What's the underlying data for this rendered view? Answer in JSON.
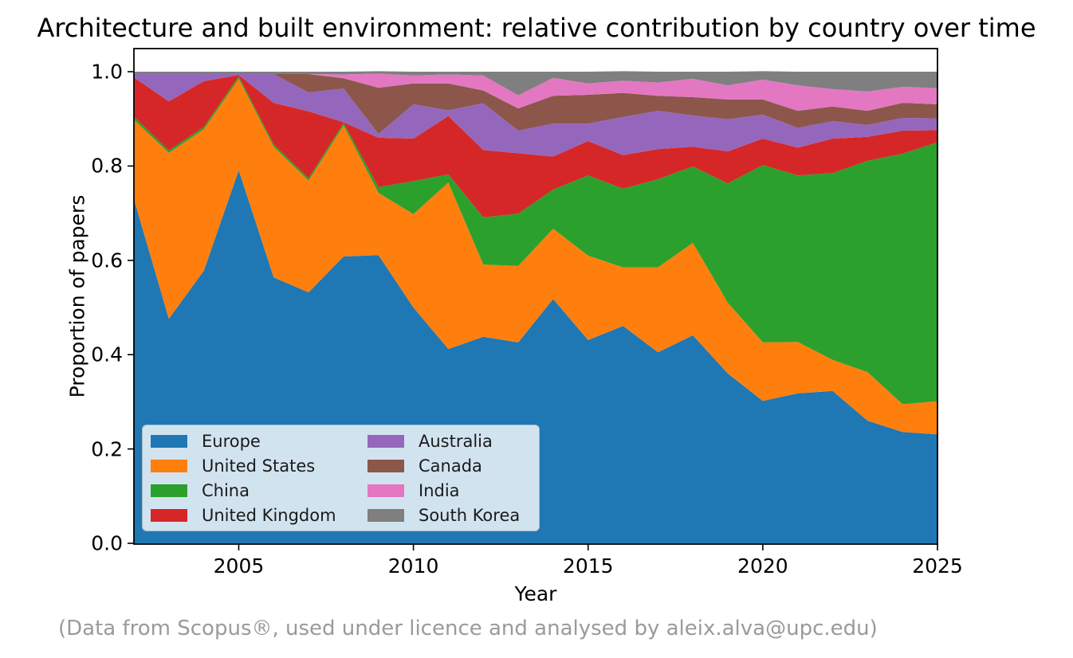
{
  "title": "Architecture and built environment: relative contribution by country over time",
  "footer": "(Data from Scopus®, used under licence and analysed by aleix.alva@upc.edu)",
  "chart_data": {
    "type": "area",
    "stacked": true,
    "normalized": true,
    "title": "Architecture and built environment: relative contribution by country over time",
    "xlabel": "Year",
    "ylabel": "Proportion of papers",
    "x_range": [
      2002,
      2025
    ],
    "ylim": [
      0.0,
      1.05
    ],
    "grid": false,
    "legend_position": "lower-left-inside",
    "legend_columns": 2,
    "x_ticks": [
      {
        "v": 2005,
        "label": "2005"
      },
      {
        "v": 2010,
        "label": "2010"
      },
      {
        "v": 2015,
        "label": "2015"
      },
      {
        "v": 2020,
        "label": "2020"
      },
      {
        "v": 2025,
        "label": "2025"
      }
    ],
    "y_ticks": [
      {
        "v": 0.0,
        "label": "0.0"
      },
      {
        "v": 0.2,
        "label": "0.2"
      },
      {
        "v": 0.4,
        "label": "0.4"
      },
      {
        "v": 0.6,
        "label": "0.6"
      },
      {
        "v": 0.8,
        "label": "0.8"
      },
      {
        "v": 1.0,
        "label": "1.0"
      }
    ],
    "years": [
      2002,
      2003,
      2004,
      2005,
      2006,
      2007,
      2008,
      2009,
      2010,
      2011,
      2012,
      2013,
      2014,
      2015,
      2016,
      2017,
      2018,
      2019,
      2020,
      2021,
      2022,
      2023,
      2024,
      2025
    ],
    "series": [
      {
        "name": "Europe",
        "color": "#1f77b4",
        "values": [
          0.73,
          0.476,
          0.578,
          0.791,
          0.564,
          0.532,
          0.608,
          0.611,
          0.5,
          0.412,
          0.438,
          0.426,
          0.518,
          0.431,
          0.461,
          0.405,
          0.441,
          0.36,
          0.302,
          0.318,
          0.323,
          0.26,
          0.236,
          0.231
        ]
      },
      {
        "name": "United States",
        "color": "#ff7f0e",
        "values": [
          0.168,
          0.352,
          0.3,
          0.194,
          0.277,
          0.237,
          0.278,
          0.132,
          0.198,
          0.353,
          0.153,
          0.162,
          0.149,
          0.179,
          0.124,
          0.18,
          0.196,
          0.15,
          0.124,
          0.109,
          0.066,
          0.103,
          0.059,
          0.07
        ]
      },
      {
        "name": "China",
        "color": "#2ca02c",
        "values": [
          0.007,
          0.005,
          0.005,
          0.005,
          0.005,
          0.005,
          0.005,
          0.012,
          0.07,
          0.017,
          0.1,
          0.111,
          0.083,
          0.17,
          0.167,
          0.187,
          0.162,
          0.253,
          0.376,
          0.353,
          0.396,
          0.448,
          0.531,
          0.549
        ]
      },
      {
        "name": "United Kingdom",
        "color": "#d62728",
        "values": [
          0.083,
          0.104,
          0.097,
          0.003,
          0.088,
          0.142,
          0.002,
          0.105,
          0.09,
          0.124,
          0.143,
          0.128,
          0.07,
          0.073,
          0.071,
          0.064,
          0.042,
          0.068,
          0.056,
          0.059,
          0.073,
          0.051,
          0.049,
          0.026
        ]
      },
      {
        "name": "Australia",
        "color": "#9467bd",
        "values": [
          0.007,
          0.058,
          0.015,
          0.002,
          0.061,
          0.04,
          0.071,
          0.008,
          0.073,
          0.012,
          0.099,
          0.048,
          0.07,
          0.037,
          0.081,
          0.081,
          0.066,
          0.068,
          0.051,
          0.042,
          0.037,
          0.025,
          0.027,
          0.025
        ]
      },
      {
        "name": "Canada",
        "color": "#8c564b",
        "values": [
          0.0,
          0.0,
          0.0,
          0.0,
          0.0,
          0.039,
          0.022,
          0.098,
          0.044,
          0.057,
          0.027,
          0.047,
          0.059,
          0.061,
          0.051,
          0.032,
          0.039,
          0.042,
          0.032,
          0.036,
          0.031,
          0.03,
          0.032,
          0.03
        ]
      },
      {
        "name": "India",
        "color": "#e377c2",
        "values": [
          0.0,
          0.0,
          0.0,
          0.0,
          0.0,
          0.0,
          0.008,
          0.03,
          0.017,
          0.019,
          0.032,
          0.028,
          0.038,
          0.024,
          0.026,
          0.028,
          0.039,
          0.03,
          0.042,
          0.054,
          0.037,
          0.041,
          0.034,
          0.034
        ]
      },
      {
        "name": "South Korea",
        "color": "#7f7f7f",
        "values": [
          0.005,
          0.005,
          0.005,
          0.005,
          0.005,
          0.005,
          0.006,
          0.005,
          0.008,
          0.006,
          0.008,
          0.05,
          0.013,
          0.025,
          0.02,
          0.023,
          0.015,
          0.029,
          0.018,
          0.029,
          0.037,
          0.042,
          0.032,
          0.035
        ]
      }
    ]
  }
}
